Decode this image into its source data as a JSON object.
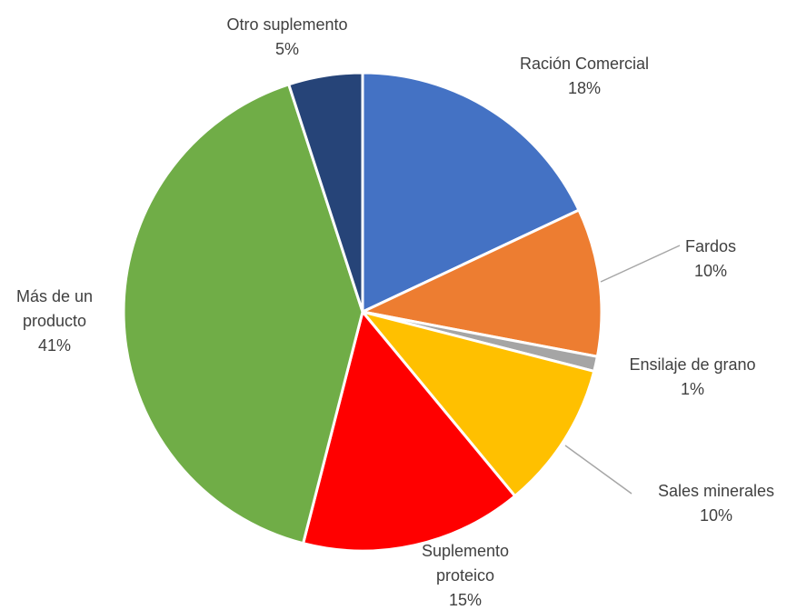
{
  "chart_data": {
    "type": "pie",
    "title": "",
    "slices": [
      {
        "name": "Ración Comercial",
        "value": 18,
        "label_lines": [
          "Ración Comercial"
        ],
        "pct_text": "18%",
        "color": "#4472C4"
      },
      {
        "name": "Fardos",
        "value": 10,
        "label_lines": [
          "Fardos"
        ],
        "pct_text": "10%",
        "color": "#ED7D31"
      },
      {
        "name": "Ensilaje de grano",
        "value": 1,
        "label_lines": [
          "Ensilaje de grano"
        ],
        "pct_text": "1%",
        "color": "#A5A5A5"
      },
      {
        "name": "Sales minerales",
        "value": 10,
        "label_lines": [
          "Sales minerales"
        ],
        "pct_text": "10%",
        "color": "#FFC000"
      },
      {
        "name": "Suplemento proteico",
        "value": 15,
        "label_lines": [
          "Suplemento",
          "proteico"
        ],
        "pct_text": "15%",
        "color": "#FF0000"
      },
      {
        "name": "Más de un producto",
        "value": 41,
        "label_lines": [
          "Más de un",
          "producto"
        ],
        "pct_text": "41%",
        "color": "#70AD47"
      },
      {
        "name": "Otro suplemento",
        "value": 5,
        "label_lines": [
          "Otro suplemento"
        ],
        "pct_text": "5%",
        "color": "#264478"
      }
    ],
    "legend": "none"
  }
}
